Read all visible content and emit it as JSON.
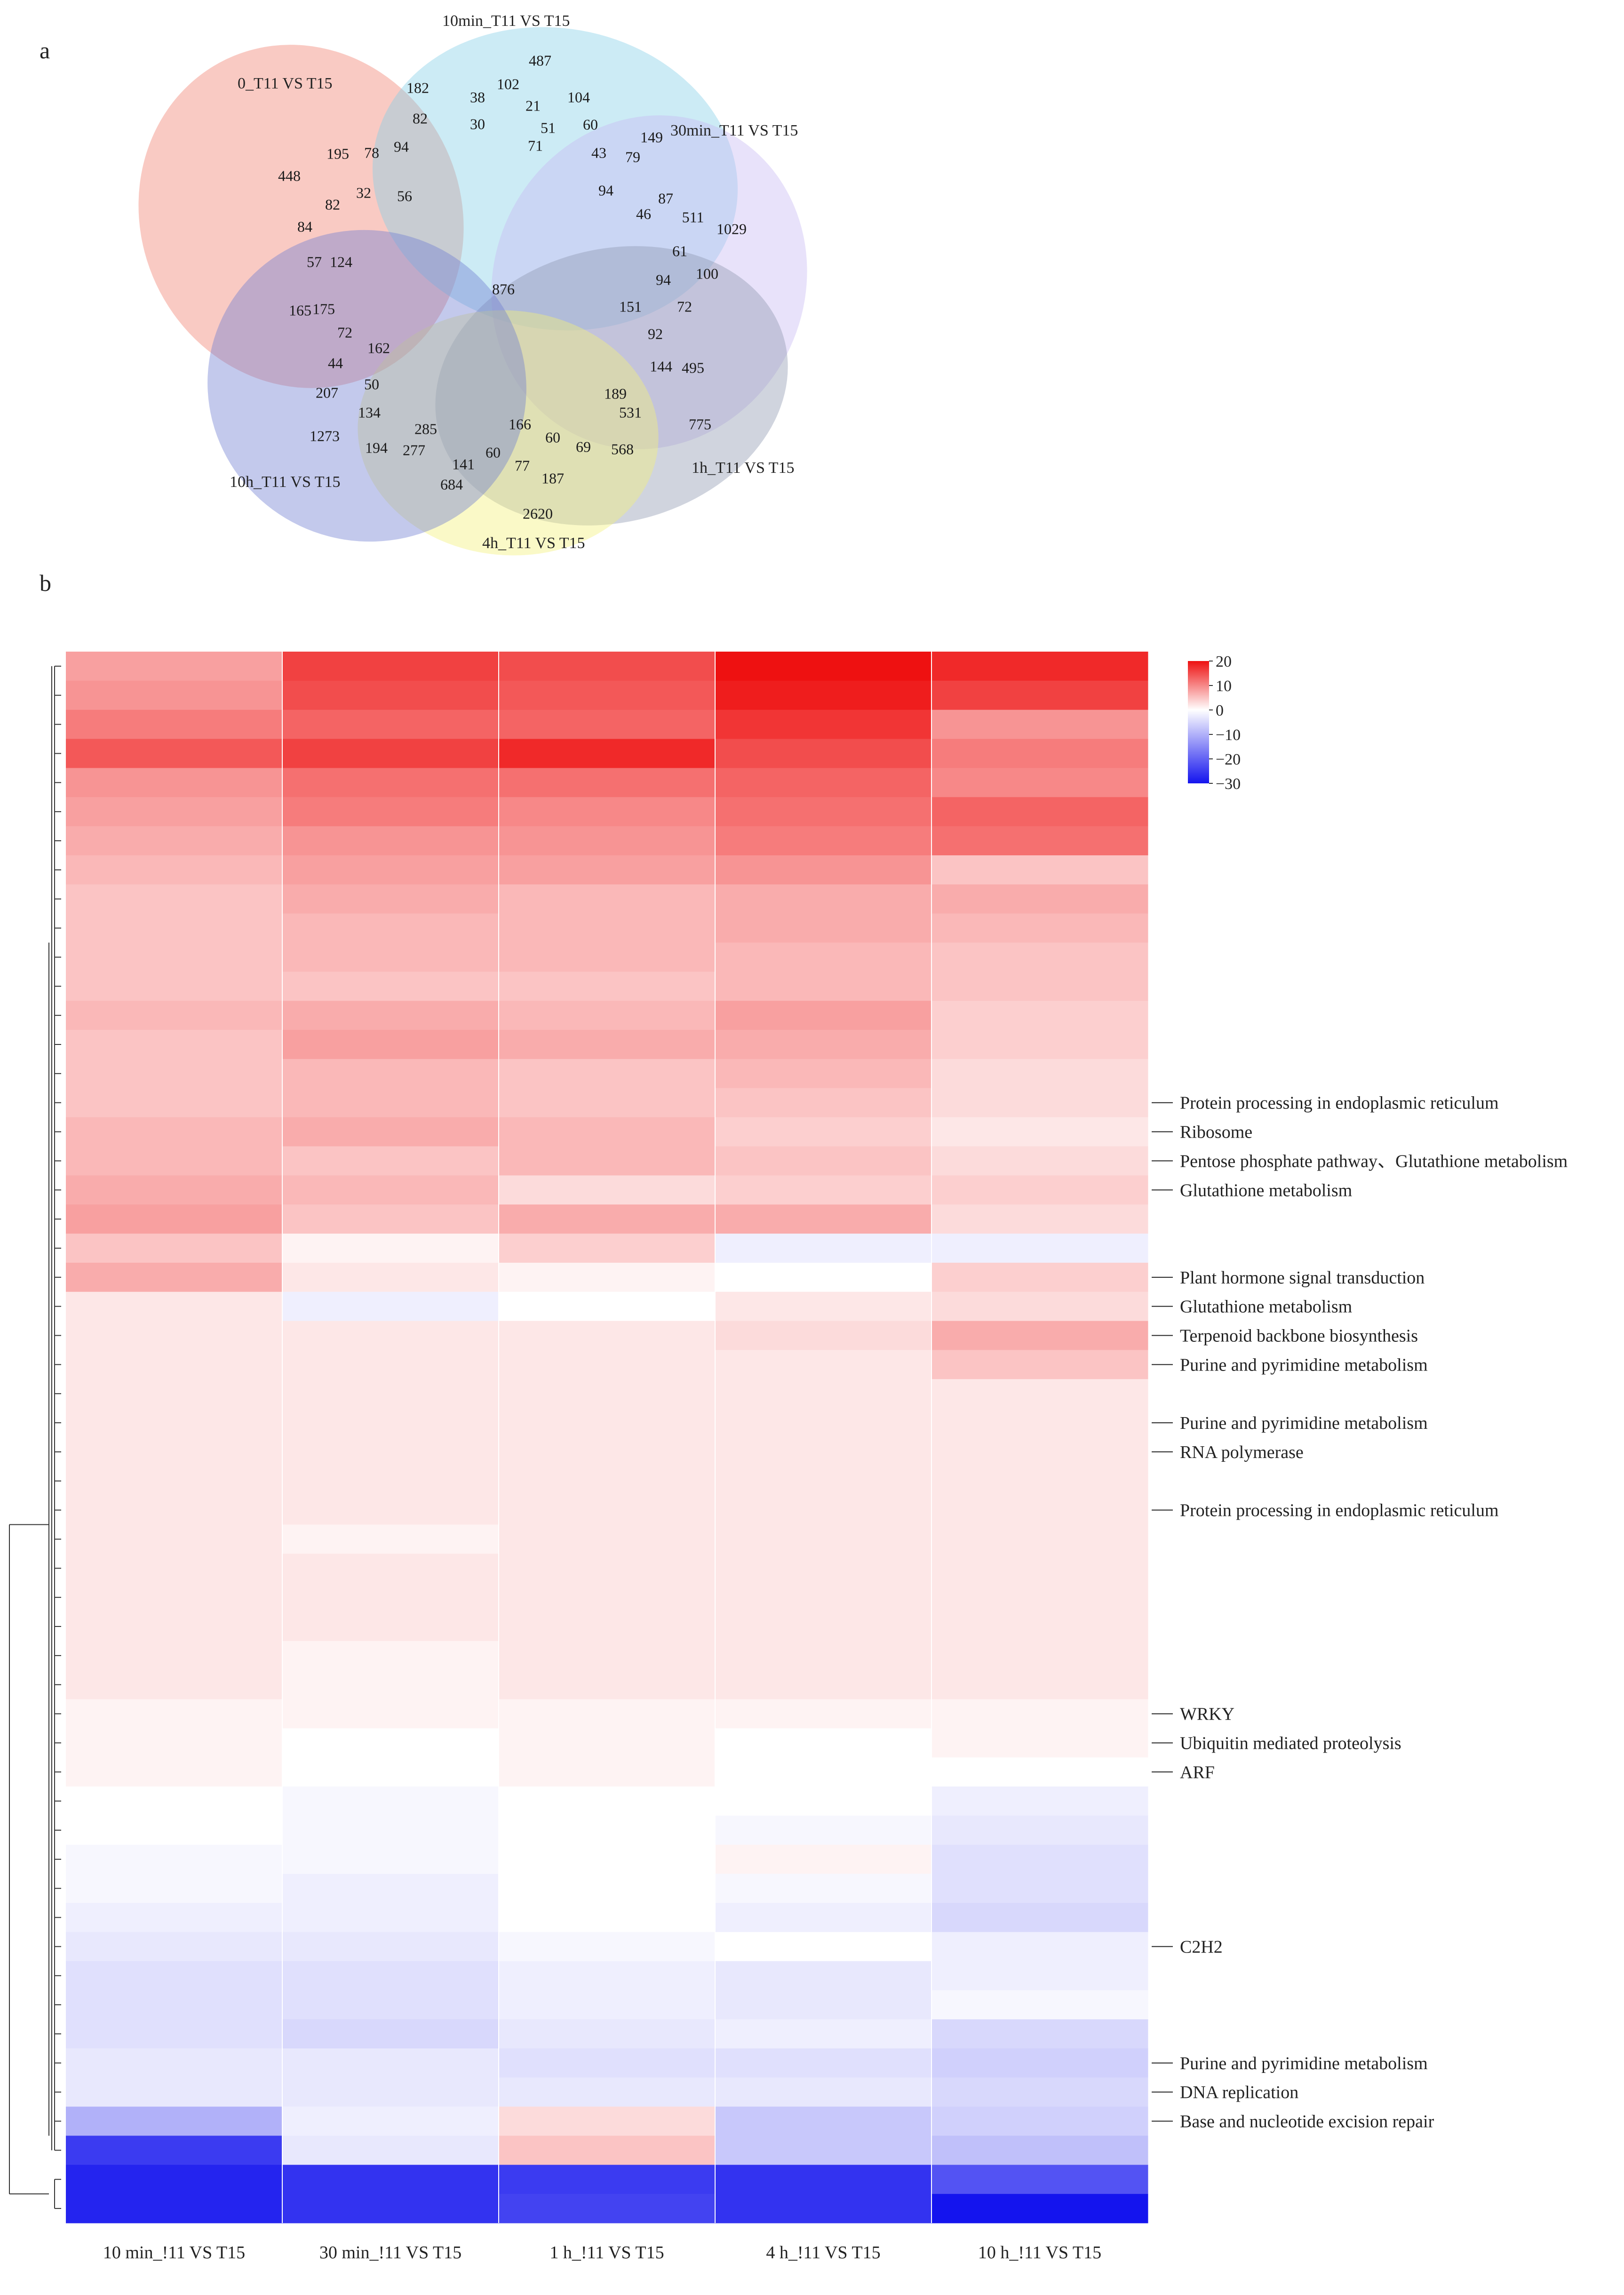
{
  "panels": {
    "a": "a",
    "b": "b"
  },
  "venn": {
    "sets": [
      {
        "label": "0_T11 VS T15",
        "color": "#f08070"
      },
      {
        "label": "10min_T11 VS T15",
        "color": "#86cfe6"
      },
      {
        "label": "30min_T11 VS T15",
        "color": "#c7b9f2"
      },
      {
        "label": "1h_T11 VS T15",
        "color": "#8e98b0"
      },
      {
        "label": "4h_T11 VS T15",
        "color": "#f2f07a"
      },
      {
        "label": "10h_T11 VS T15",
        "color": "#6f7fd2"
      }
    ],
    "regions": [
      "487",
      "182",
      "38",
      "102",
      "21",
      "104",
      "60",
      "149",
      "82",
      "30",
      "51",
      "71",
      "43",
      "79",
      "195",
      "78",
      "94",
      "448",
      "32",
      "56",
      "82",
      "84",
      "57",
      "124",
      "165",
      "175",
      "72",
      "162",
      "44",
      "50",
      "207",
      "134",
      "1273",
      "194",
      "285",
      "277",
      "141",
      "60",
      "77",
      "684",
      "187",
      "2620",
      "166",
      "60",
      "69",
      "568",
      "531",
      "189",
      "775",
      "144",
      "495",
      "92",
      "72",
      "151",
      "94",
      "100",
      "61",
      "1029",
      "511",
      "87",
      "46",
      "94",
      "876"
    ]
  },
  "chart_data": {
    "type": "heatmap",
    "columns": [
      "10 min_!11 VS T15",
      "30 min_!11 VS T15",
      "1 h_!11 VS T15",
      "4 h_!11 VS T15",
      "10 h_!11 VS T15"
    ],
    "colorbar": {
      "ticks": [
        "20",
        "10",
        "0",
        "−10",
        "−20",
        "−30"
      ],
      "range": [
        -30,
        20
      ],
      "high": "#ee1111",
      "mid": "#ffffff",
      "low": "#1414ee"
    },
    "row_count": 54,
    "values": [
      [
        8,
        16,
        15,
        20,
        18
      ],
      [
        9,
        15,
        14,
        19,
        16
      ],
      [
        11,
        13,
        13,
        17,
        9
      ],
      [
        14,
        16,
        18,
        15,
        11
      ],
      [
        9,
        12,
        12,
        13,
        10
      ],
      [
        8,
        11,
        10,
        12,
        13
      ],
      [
        7,
        9,
        9,
        11,
        12
      ],
      [
        6,
        8,
        8,
        9,
        5
      ],
      [
        5,
        7,
        6,
        7,
        7
      ],
      [
        5,
        6,
        6,
        7,
        6
      ],
      [
        5,
        6,
        6,
        6,
        5
      ],
      [
        5,
        5,
        5,
        6,
        5
      ],
      [
        6,
        7,
        6,
        8,
        4
      ],
      [
        5,
        8,
        7,
        7,
        4
      ],
      [
        5,
        6,
        5,
        6,
        3
      ],
      [
        5,
        6,
        5,
        5,
        3
      ],
      [
        6,
        7,
        6,
        4,
        2
      ],
      [
        6,
        5,
        6,
        5,
        3
      ],
      [
        7,
        6,
        3,
        4,
        4
      ],
      [
        8,
        5,
        7,
        7,
        3
      ],
      [
        5,
        1,
        4,
        -2,
        -2
      ],
      [
        7,
        2,
        1,
        0,
        4
      ],
      [
        2,
        -2,
        0,
        2,
        3
      ],
      [
        2,
        2,
        2,
        3,
        7
      ],
      [
        2,
        2,
        2,
        2,
        5
      ],
      [
        2,
        2,
        2,
        2,
        2
      ],
      [
        2,
        2,
        2,
        2,
        2
      ],
      [
        2,
        2,
        2,
        2,
        2
      ],
      [
        2,
        2,
        2,
        2,
        2
      ],
      [
        2,
        2,
        2,
        2,
        2
      ],
      [
        2,
        1,
        2,
        2,
        2
      ],
      [
        2,
        2,
        2,
        2,
        2
      ],
      [
        2,
        2,
        2,
        2,
        2
      ],
      [
        2,
        2,
        2,
        2,
        2
      ],
      [
        2,
        1,
        2,
        2,
        2
      ],
      [
        2,
        1,
        2,
        2,
        2
      ],
      [
        1,
        1,
        1,
        1,
        1
      ],
      [
        1,
        0,
        1,
        0,
        1
      ],
      [
        1,
        0,
        1,
        0,
        0
      ],
      [
        0,
        -1,
        0,
        0,
        -2
      ],
      [
        0,
        -1,
        0,
        -1,
        -3
      ],
      [
        -1,
        -1,
        0,
        1,
        -4
      ],
      [
        -1,
        -2,
        0,
        -1,
        -4
      ],
      [
        -2,
        -2,
        0,
        -2,
        -5
      ],
      [
        -3,
        -3,
        -1,
        0,
        -2
      ],
      [
        -4,
        -4,
        -2,
        -3,
        -2
      ],
      [
        -4,
        -4,
        -2,
        -3,
        -1
      ],
      [
        -4,
        -5,
        -3,
        -2,
        -5
      ],
      [
        -3,
        -3,
        -4,
        -4,
        -6
      ],
      [
        -3,
        -3,
        -3,
        -3,
        -5
      ],
      [
        -10,
        -2,
        3,
        -7,
        -6
      ],
      [
        -25,
        -3,
        5,
        -7,
        -8
      ],
      [
        -28,
        -26,
        -25,
        -26,
        -22
      ],
      [
        -28,
        -26,
        -24,
        -26,
        -30
      ]
    ],
    "annotations": [
      {
        "row": 15,
        "label": "Protein processing in endoplasmic reticulum"
      },
      {
        "row": 16,
        "label": "Ribosome"
      },
      {
        "row": 17,
        "label": "Pentose phosphate pathway、Glutathione metabolism"
      },
      {
        "row": 18,
        "label": "Glutathione metabolism"
      },
      {
        "row": 21,
        "label": "Plant hormone signal transduction"
      },
      {
        "row": 22,
        "label": "Glutathione metabolism"
      },
      {
        "row": 23,
        "label": "Terpenoid backbone biosynthesis"
      },
      {
        "row": 24,
        "label": "Purine and pyrimidine metabolism"
      },
      {
        "row": 26,
        "label": "Purine and pyrimidine metabolism"
      },
      {
        "row": 27,
        "label": "RNA polymerase"
      },
      {
        "row": 29,
        "label": "Protein processing in endoplasmic reticulum"
      },
      {
        "row": 36,
        "label": "WRKY"
      },
      {
        "row": 37,
        "label": "Ubiquitin mediated proteolysis"
      },
      {
        "row": 38,
        "label": "ARF"
      },
      {
        "row": 44,
        "label": "C2H2"
      },
      {
        "row": 48,
        "label": "Purine and pyrimidine metabolism"
      },
      {
        "row": 49,
        "label": "DNA replication"
      },
      {
        "row": 50,
        "label": "Base and nucleotide excision repair"
      }
    ]
  }
}
